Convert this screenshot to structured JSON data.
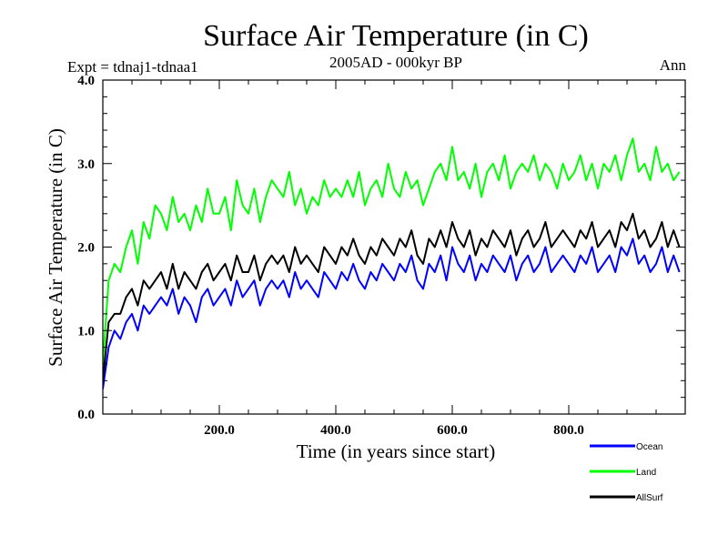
{
  "chart_data": {
    "type": "line",
    "title": "Surface Air Temperature (in C)",
    "subtitle": "2005AD - 000kyr BP",
    "left_annotation": "Expt = tdnaj1-tdnaa1",
    "right_annotation": "Ann",
    "xlabel": "Time (in years since start)",
    "ylabel": "Surface Air Temperature (in C)",
    "xlim": [
      0,
      1000
    ],
    "ylim": [
      0.0,
      4.0
    ],
    "xticks": [
      200,
      400,
      600,
      800
    ],
    "xtick_labels": [
      "200.0",
      "400.0",
      "600.0",
      "800.0"
    ],
    "yticks": [
      0,
      1,
      2,
      3,
      4
    ],
    "ytick_labels": [
      "0.0",
      "1.0",
      "2.0",
      "3.0",
      "4.0"
    ],
    "grid": false,
    "legend_position": "bottom-right, below plot",
    "x": [
      0,
      10,
      20,
      30,
      40,
      50,
      60,
      70,
      80,
      90,
      100,
      110,
      120,
      130,
      140,
      150,
      160,
      170,
      180,
      190,
      200,
      210,
      220,
      230,
      240,
      250,
      260,
      270,
      280,
      290,
      300,
      310,
      320,
      330,
      340,
      350,
      360,
      370,
      380,
      390,
      400,
      410,
      420,
      430,
      440,
      450,
      460,
      470,
      480,
      490,
      500,
      510,
      520,
      530,
      540,
      550,
      560,
      570,
      580,
      590,
      600,
      610,
      620,
      630,
      640,
      650,
      660,
      670,
      680,
      690,
      700,
      710,
      720,
      730,
      740,
      750,
      760,
      770,
      780,
      790,
      800,
      810,
      820,
      830,
      840,
      850,
      860,
      870,
      880,
      890,
      900,
      910,
      920,
      930,
      940,
      950,
      960,
      970,
      980,
      990
    ],
    "series": [
      {
        "name": "Ocean",
        "color": "#0000ff",
        "values": [
          0.3,
          0.8,
          1.0,
          0.9,
          1.1,
          1.2,
          1.0,
          1.3,
          1.2,
          1.3,
          1.4,
          1.3,
          1.5,
          1.2,
          1.4,
          1.3,
          1.1,
          1.4,
          1.5,
          1.3,
          1.4,
          1.5,
          1.3,
          1.6,
          1.4,
          1.5,
          1.6,
          1.3,
          1.5,
          1.6,
          1.5,
          1.6,
          1.4,
          1.7,
          1.5,
          1.6,
          1.5,
          1.4,
          1.7,
          1.6,
          1.5,
          1.7,
          1.6,
          1.8,
          1.6,
          1.5,
          1.7,
          1.6,
          1.8,
          1.7,
          1.6,
          1.8,
          1.7,
          1.9,
          1.6,
          1.5,
          1.8,
          1.7,
          1.9,
          1.6,
          2.0,
          1.8,
          1.7,
          1.9,
          1.6,
          1.8,
          1.7,
          1.9,
          1.8,
          1.7,
          1.9,
          1.6,
          1.8,
          1.9,
          1.7,
          1.8,
          2.0,
          1.7,
          1.8,
          1.9,
          1.8,
          1.7,
          1.9,
          1.8,
          2.0,
          1.7,
          1.8,
          1.9,
          1.7,
          2.0,
          1.9,
          2.1,
          1.8,
          1.9,
          1.7,
          1.8,
          2.0,
          1.7,
          1.9,
          1.7
        ]
      },
      {
        "name": "Land",
        "color": "#00ff00",
        "values": [
          0.6,
          1.6,
          1.8,
          1.7,
          2.0,
          2.2,
          1.8,
          2.3,
          2.1,
          2.5,
          2.4,
          2.2,
          2.6,
          2.3,
          2.4,
          2.2,
          2.5,
          2.3,
          2.7,
          2.4,
          2.4,
          2.6,
          2.2,
          2.8,
          2.5,
          2.4,
          2.7,
          2.3,
          2.6,
          2.8,
          2.7,
          2.6,
          2.9,
          2.5,
          2.7,
          2.4,
          2.6,
          2.5,
          2.8,
          2.6,
          2.7,
          2.6,
          2.8,
          2.6,
          2.9,
          2.5,
          2.7,
          2.8,
          2.6,
          3.0,
          2.7,
          2.6,
          2.9,
          2.7,
          2.8,
          2.5,
          2.7,
          2.9,
          3.0,
          2.8,
          3.2,
          2.8,
          2.9,
          2.7,
          3.0,
          2.6,
          2.9,
          3.0,
          2.8,
          3.1,
          2.7,
          2.9,
          3.0,
          2.9,
          3.1,
          2.8,
          3.0,
          2.9,
          2.7,
          3.0,
          2.8,
          2.9,
          3.1,
          2.8,
          3.0,
          2.7,
          3.0,
          2.9,
          3.1,
          2.8,
          3.1,
          3.3,
          2.9,
          3.0,
          2.8,
          3.2,
          2.9,
          3.0,
          2.8,
          2.9
        ]
      },
      {
        "name": "AllSurf",
        "color": "#000000",
        "values": [
          0.4,
          1.1,
          1.2,
          1.2,
          1.4,
          1.5,
          1.3,
          1.6,
          1.5,
          1.6,
          1.7,
          1.5,
          1.8,
          1.5,
          1.7,
          1.6,
          1.5,
          1.7,
          1.8,
          1.6,
          1.7,
          1.8,
          1.6,
          1.9,
          1.7,
          1.7,
          1.9,
          1.6,
          1.8,
          1.9,
          1.8,
          1.9,
          1.7,
          2.0,
          1.8,
          1.9,
          1.8,
          1.7,
          2.0,
          1.9,
          1.8,
          2.0,
          1.9,
          2.1,
          1.9,
          1.8,
          2.0,
          1.9,
          2.1,
          2.0,
          1.9,
          2.1,
          2.0,
          2.2,
          1.9,
          1.8,
          2.1,
          2.0,
          2.2,
          2.0,
          2.3,
          2.1,
          2.0,
          2.2,
          1.9,
          2.1,
          2.0,
          2.2,
          2.1,
          2.0,
          2.2,
          1.9,
          2.1,
          2.2,
          2.0,
          2.1,
          2.3,
          2.0,
          2.1,
          2.2,
          2.1,
          2.0,
          2.2,
          2.1,
          2.3,
          2.0,
          2.1,
          2.2,
          2.0,
          2.3,
          2.2,
          2.4,
          2.1,
          2.2,
          2.0,
          2.1,
          2.3,
          2.0,
          2.2,
          2.0
        ]
      }
    ]
  }
}
